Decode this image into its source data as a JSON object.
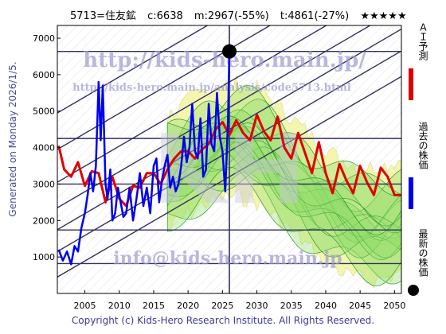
{
  "header": {
    "code_name": "5713=住友鉱",
    "current": "c:6638",
    "min_stat": "m:2967(-55%)",
    "target_stat": "t:4861(-27%)",
    "stars": "★★★★★"
  },
  "side_text": "Generated on Monday 2026/1/5.",
  "footer": "Copyright (c) Kids-Hero Research Institute. All Rights Reserved.",
  "watermarks": {
    "url_big": "http://kids-hero.main.jp/",
    "url_small": "http://kids-hero.main.jp/analysis/code5713.html",
    "email": "info@kids-hero.main.jp",
    "logo": "KH"
  },
  "legend": {
    "ai": "ＡＩ予測",
    "past": "過去の株価",
    "latest": "最新の株価"
  },
  "colors": {
    "ai": "#e00000",
    "past": "#0000ee",
    "latest": "#000000",
    "band_green": "#8fdc6a",
    "band_yellow": "#f4f6b0",
    "channel": "#303060"
  },
  "chart_data": {
    "type": "line",
    "xlim": [
      2001,
      2051
    ],
    "ylim": [
      0,
      7350
    ],
    "x_ticks": [
      2005,
      2010,
      2015,
      2020,
      2025,
      2030,
      2035,
      2040,
      2045,
      2050
    ],
    "y_ticks": [
      1000,
      2000,
      3000,
      4000,
      5000,
      6000,
      7000
    ],
    "hlines": [
      820,
      1740,
      3000,
      4250,
      6638
    ],
    "current_point": {
      "x": 2026.0,
      "y": 6638
    },
    "vline_x": 2026.0,
    "past_series": {
      "x": [
        2001.2,
        2001.8,
        2002.4,
        2003.0,
        2003.5,
        2004.0,
        2004.5,
        2005.0,
        2005.4,
        2005.8,
        2006.2,
        2006.6,
        2007.0,
        2007.3,
        2007.6,
        2008.0,
        2008.3,
        2008.7,
        2009.0,
        2009.4,
        2009.8,
        2010.2,
        2010.6,
        2011.0,
        2011.5,
        2012.0,
        2012.5,
        2013.0,
        2013.5,
        2014.0,
        2014.5,
        2015.0,
        2015.4,
        2015.8,
        2016.2,
        2016.6,
        2017.0,
        2017.4,
        2017.8,
        2018.2,
        2018.6,
        2019.0,
        2019.4,
        2019.8,
        2020.2,
        2020.6,
        2021.0,
        2021.4,
        2021.8,
        2022.2,
        2022.6,
        2023.0,
        2023.4,
        2023.8,
        2024.2,
        2024.6,
        2025.0,
        2025.4,
        2025.8,
        2026.0
      ],
      "y": [
        1200,
        900,
        1150,
        800,
        1300,
        1150,
        1800,
        2200,
        2700,
        3300,
        2800,
        3500,
        5800,
        4200,
        5700,
        3000,
        2600,
        3400,
        2000,
        2200,
        2900,
        2500,
        2100,
        2200,
        2900,
        2000,
        2600,
        3300,
        2400,
        2900,
        2200,
        3500,
        3700,
        2500,
        3100,
        3500,
        3800,
        2900,
        3200,
        2800,
        3000,
        3500,
        4300,
        3600,
        4000,
        5200,
        3900,
        3700,
        4800,
        3200,
        3400,
        5200,
        4100,
        3900,
        5500,
        4300,
        3900,
        2800,
        4700,
        6638
      ]
    },
    "ai_series": {
      "x": [
        2001.2,
        2002,
        2003,
        2004,
        2005,
        2006,
        2007,
        2008,
        2009,
        2010,
        2011,
        2012,
        2013,
        2014,
        2015,
        2016,
        2017,
        2018,
        2019,
        2020,
        2021,
        2022,
        2023,
        2024,
        2025,
        2026,
        2027,
        2028,
        2029,
        2030,
        2031,
        2032,
        2033,
        2034,
        2035,
        2036,
        2037,
        2038,
        2039,
        2040,
        2041,
        2042,
        2043,
        2044,
        2045,
        2046,
        2047,
        2048,
        2049,
        2050,
        2051
      ],
      "y": [
        4050,
        3400,
        3200,
        3600,
        2950,
        3350,
        3300,
        2500,
        3200,
        2600,
        2400,
        2950,
        2900,
        3300,
        3300,
        3000,
        3400,
        3700,
        3900,
        3900,
        3700,
        3950,
        4100,
        4500,
        4700,
        4350,
        4750,
        4400,
        4200,
        4900,
        4450,
        4200,
        4850,
        4000,
        3700,
        4400,
        3850,
        3300,
        4150,
        3300,
        2750,
        3550,
        3100,
        2750,
        3500,
        3050,
        2700,
        3450,
        3200,
        2700,
        2700
      ]
    }
  }
}
